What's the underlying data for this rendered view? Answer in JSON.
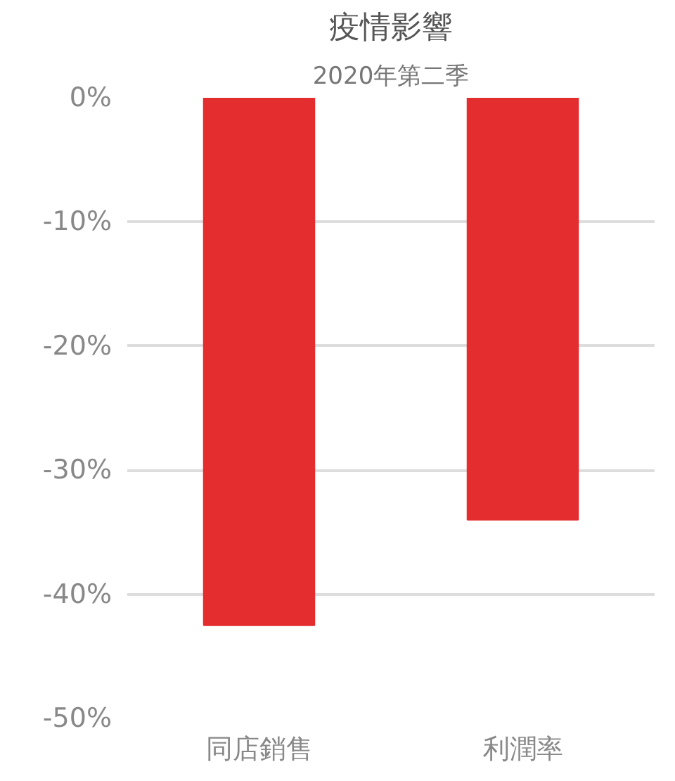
{
  "chart_data": {
    "type": "bar",
    "title": "疫情影響",
    "subtitle": "2020年第二季",
    "categories": [
      "同店銷售",
      "利潤率"
    ],
    "values": [
      -42.5,
      -34
    ],
    "color": "#e32d2f",
    "ylim": [
      -50,
      0
    ],
    "yticks": [
      {
        "value": 0,
        "label": "0%"
      },
      {
        "value": -10,
        "label": "-10%"
      },
      {
        "value": -20,
        "label": "-20%"
      },
      {
        "value": -30,
        "label": "-30%"
      },
      {
        "value": -40,
        "label": "-40%"
      },
      {
        "value": -50,
        "label": "-50%"
      }
    ],
    "grid": "y"
  }
}
